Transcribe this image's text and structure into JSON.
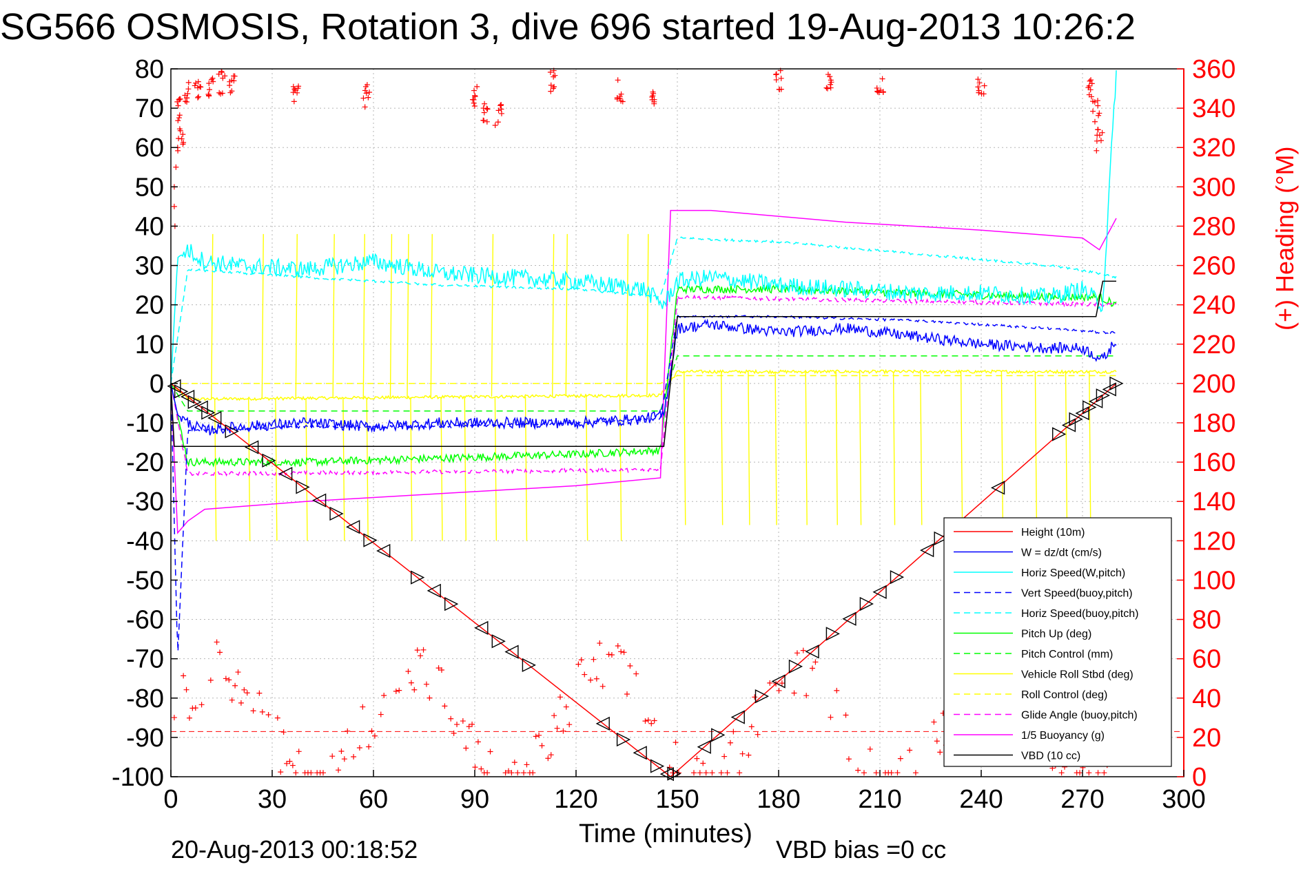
{
  "chart_data": {
    "type": "line",
    "title": "SG566 OSMOSIS, Rotation 3, dive 696 started 19-Aug-2013 10:26:2",
    "xlabel": "Time (minutes)",
    "ylabel": "",
    "y2label": "(+) Heading (°M)",
    "xlim": [
      0,
      300
    ],
    "ylim": [
      -100,
      80
    ],
    "y2lim": [
      0,
      360
    ],
    "x_ticks": [
      "0",
      "30",
      "60",
      "90",
      "120",
      "150",
      "180",
      "210",
      "240",
      "270",
      "300"
    ],
    "y_ticks": [
      "80",
      "70",
      "60",
      "50",
      "40",
      "30",
      "20",
      "10",
      "0",
      "-10",
      "-20",
      "-30",
      "-40",
      "-50",
      "-60",
      "-70",
      "-80",
      "-90",
      "-100"
    ],
    "y2_ticks": [
      "360",
      "340",
      "320",
      "300",
      "280",
      "260",
      "240",
      "220",
      "200",
      "180",
      "160",
      "140",
      "120",
      "100",
      "80",
      "60",
      "40",
      "20",
      "0"
    ],
    "grid": true,
    "legend_position": "bottom-right",
    "colors": {
      "red": "#ff0000",
      "blue": "#0000ff",
      "cyan": "#00ffff",
      "green": "#00ff00",
      "yellow": "#ffff00",
      "magenta": "#ff00ff",
      "black": "#000000"
    },
    "series": [
      {
        "name": "Height (10m)",
        "color": "#ff0000",
        "style": "solid",
        "x": [
          0,
          148,
          280
        ],
        "y": [
          0,
          -100,
          0
        ]
      },
      {
        "name": "W = dz/dt (cm/s)",
        "color": "#0000ff",
        "style": "solid",
        "x": [
          0,
          2,
          5,
          10,
          20,
          40,
          60,
          80,
          100,
          120,
          140,
          146,
          150,
          160,
          180,
          200,
          220,
          240,
          260,
          270,
          276,
          280
        ],
        "y": [
          0,
          -8,
          -10,
          -12,
          -11,
          -10,
          -11,
          -10,
          -10,
          -10,
          -9,
          -8,
          14,
          15,
          13,
          14,
          12,
          10,
          9,
          9,
          6,
          11
        ]
      },
      {
        "name": "Horiz Speed(W,pitch)",
        "color": "#00ffff",
        "style": "solid",
        "x": [
          0,
          2,
          5,
          10,
          20,
          40,
          60,
          80,
          100,
          120,
          140,
          146,
          150,
          160,
          180,
          200,
          220,
          240,
          260,
          270,
          276,
          280
        ],
        "y": [
          0,
          32,
          34,
          31,
          30,
          29,
          31,
          28,
          27,
          26,
          24,
          20,
          26,
          27,
          25,
          24,
          23,
          23,
          22,
          24,
          20,
          80
        ]
      },
      {
        "name": "Vert Speed(buoy,pitch)",
        "color": "#0000ff",
        "style": "dashed",
        "x": [
          0,
          2,
          5,
          40,
          80,
          120,
          145,
          150,
          180,
          220,
          260,
          275,
          280
        ],
        "y": [
          0,
          -70,
          -12,
          -11,
          -11,
          -10,
          -9,
          17,
          17,
          16,
          14,
          13,
          13
        ]
      },
      {
        "name": "Horiz Speed(buoy,pitch)",
        "color": "#00ffff",
        "style": "dashed",
        "x": [
          0,
          5,
          40,
          80,
          120,
          145,
          150,
          180,
          220,
          260,
          275,
          280
        ],
        "y": [
          0,
          29,
          27,
          25,
          24,
          22,
          37,
          36,
          33,
          30,
          28,
          27
        ]
      },
      {
        "name": "Pitch Up (deg)",
        "color": "#00ff00",
        "style": "solid",
        "x": [
          0,
          5,
          40,
          80,
          120,
          145,
          150,
          180,
          220,
          260,
          275,
          280
        ],
        "y": [
          0,
          -20,
          -20,
          -19,
          -18,
          -17,
          24,
          24,
          23,
          22,
          22,
          20
        ]
      },
      {
        "name": "Pitch Control (mm)",
        "color": "#00ff00",
        "style": "dashed",
        "x": [
          0,
          5,
          145,
          150,
          280
        ],
        "y": [
          0,
          -7,
          -7,
          7,
          7
        ]
      },
      {
        "name": "Vehicle Roll Stbd (deg)",
        "color": "#ffff00",
        "style": "solid",
        "x": [
          0,
          5,
          145,
          150,
          280
        ],
        "y": [
          0,
          -4,
          -3,
          3,
          3
        ]
      },
      {
        "name": "Roll Control (deg)",
        "color": "#ffff00",
        "style": "dashed",
        "x": [
          0,
          5,
          145,
          150,
          280
        ],
        "y": [
          0,
          0,
          0,
          2,
          2
        ]
      },
      {
        "name": "Glide Angle (buoy,pitch)",
        "color": "#ff00ff",
        "style": "dashed",
        "x": [
          0,
          5,
          145,
          150,
          280
        ],
        "y": [
          0,
          -23,
          -22,
          22,
          20
        ]
      },
      {
        "name": "1/5 Buoyancy (g)",
        "color": "#ff00ff",
        "style": "solid",
        "x": [
          0,
          2,
          5,
          10,
          40,
          80,
          120,
          145,
          148,
          160,
          200,
          240,
          270,
          275,
          280
        ],
        "y": [
          0,
          -38,
          -35,
          -32,
          -30,
          -28,
          -26,
          -24,
          44,
          44,
          41,
          39,
          37,
          34,
          42
        ]
      },
      {
        "name": "VBD (10 cc)",
        "color": "#000000",
        "style": "solid",
        "x": [
          0,
          1,
          146,
          150,
          274,
          276,
          280
        ],
        "y": [
          0,
          -16,
          -16,
          17,
          17,
          26,
          26
        ]
      }
    ]
  },
  "footer": {
    "datetime": "20-Aug-2013 00:18:52",
    "vbd_bias": "VBD bias =0 cc"
  }
}
